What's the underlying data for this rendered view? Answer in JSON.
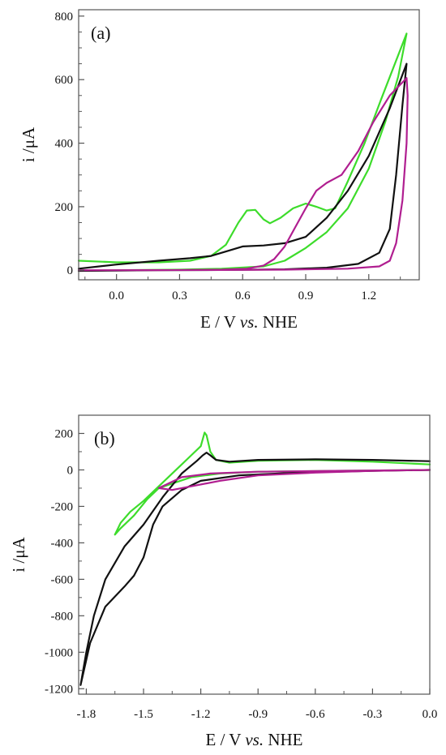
{
  "chart_data": [
    {
      "type": "line",
      "panel_label": "(a)",
      "xlabel": {
        "lead": "E / V ",
        "italic": "vs.",
        "tail": " NHE"
      },
      "ylabel": "i /μA",
      "xlim": [
        -0.18,
        1.44
      ],
      "ylim": [
        -30,
        820
      ],
      "xticks": [
        0.0,
        0.3,
        0.6,
        0.9,
        1.2
      ],
      "xtick_labels": [
        "0.0",
        "0.3",
        "0.6",
        "0.9",
        "1.2"
      ],
      "yticks": [
        0,
        200,
        400,
        600,
        800
      ],
      "ytick_labels": [
        "0",
        "200",
        "400",
        "600",
        "800"
      ],
      "grid": false,
      "legend": "none",
      "series": [
        {
          "color": "#3ddc2b",
          "points": [
            [
              -0.18,
              30
            ],
            [
              0.0,
              25
            ],
            [
              0.2,
              25
            ],
            [
              0.35,
              30
            ],
            [
              0.45,
              45
            ],
            [
              0.52,
              80
            ],
            [
              0.58,
              150
            ],
            [
              0.62,
              188
            ],
            [
              0.66,
              190
            ],
            [
              0.7,
              160
            ],
            [
              0.73,
              148
            ],
            [
              0.78,
              165
            ],
            [
              0.84,
              195
            ],
            [
              0.9,
              210
            ],
            [
              0.95,
              200
            ],
            [
              1.0,
              188
            ],
            [
              1.04,
              195
            ],
            [
              1.1,
              280
            ],
            [
              1.18,
              400
            ],
            [
              1.26,
              540
            ],
            [
              1.33,
              660
            ],
            [
              1.38,
              745
            ],
            [
              1.34,
              610
            ],
            [
              1.28,
              470
            ],
            [
              1.2,
              320
            ],
            [
              1.1,
              195
            ],
            [
              1.0,
              120
            ],
            [
              0.9,
              70
            ],
            [
              0.8,
              30
            ],
            [
              0.7,
              12
            ],
            [
              0.5,
              5
            ],
            [
              0.3,
              2
            ],
            [
              0.0,
              0
            ],
            [
              -0.18,
              -2
            ]
          ]
        },
        {
          "color": "#111111",
          "points": [
            [
              -0.18,
              5
            ],
            [
              0.0,
              18
            ],
            [
              0.2,
              30
            ],
            [
              0.35,
              38
            ],
            [
              0.45,
              45
            ],
            [
              0.55,
              65
            ],
            [
              0.6,
              75
            ],
            [
              0.7,
              78
            ],
            [
              0.8,
              85
            ],
            [
              0.9,
              105
            ],
            [
              1.0,
              165
            ],
            [
              1.1,
              250
            ],
            [
              1.2,
              360
            ],
            [
              1.3,
              510
            ],
            [
              1.38,
              650
            ],
            [
              1.36,
              520
            ],
            [
              1.33,
              300
            ],
            [
              1.3,
              130
            ],
            [
              1.25,
              55
            ],
            [
              1.15,
              20
            ],
            [
              1.0,
              8
            ],
            [
              0.8,
              3
            ],
            [
              0.5,
              1
            ],
            [
              0.2,
              0
            ],
            [
              0.0,
              -1
            ],
            [
              -0.18,
              -2
            ]
          ]
        },
        {
          "color": "#b01e90",
          "points": [
            [
              -0.18,
              0
            ],
            [
              0.2,
              0
            ],
            [
              0.5,
              2
            ],
            [
              0.62,
              5
            ],
            [
              0.7,
              15
            ],
            [
              0.75,
              35
            ],
            [
              0.8,
              75
            ],
            [
              0.85,
              135
            ],
            [
              0.9,
              195
            ],
            [
              0.95,
              250
            ],
            [
              1.0,
              275
            ],
            [
              1.07,
              300
            ],
            [
              1.15,
              375
            ],
            [
              1.22,
              465
            ],
            [
              1.3,
              550
            ],
            [
              1.38,
              605
            ],
            [
              1.385,
              550
            ],
            [
              1.38,
              400
            ],
            [
              1.36,
              220
            ],
            [
              1.33,
              85
            ],
            [
              1.3,
              30
            ],
            [
              1.25,
              12
            ],
            [
              1.1,
              5
            ],
            [
              0.8,
              2
            ],
            [
              0.5,
              1
            ],
            [
              0.0,
              0
            ],
            [
              -0.18,
              0
            ]
          ]
        }
      ]
    },
    {
      "type": "line",
      "panel_label": "(b)",
      "xlabel": {
        "lead": "E / V ",
        "italic": "vs.",
        "tail": " NHE"
      },
      "ylabel": "i /μA",
      "xlim": [
        -1.84,
        0.0
      ],
      "ylim": [
        -1230,
        300
      ],
      "xticks": [
        -1.8,
        -1.5,
        -1.2,
        -0.9,
        -0.6,
        -0.3,
        0.0
      ],
      "xtick_labels": [
        "-1.8",
        "-1.5",
        "-1.2",
        "-0.9",
        "-0.6",
        "-0.3",
        "0.0"
      ],
      "yticks": [
        200,
        0,
        -200,
        -400,
        -600,
        -800,
        -1000,
        -1200
      ],
      "ytick_labels": [
        "200",
        "0",
        "-200",
        "-400",
        "-600",
        "-800",
        "-1000",
        "-1200"
      ],
      "grid": false,
      "legend": "none",
      "series": [
        {
          "color": "#3ddc2b",
          "points": [
            [
              0.0,
              30
            ],
            [
              -0.3,
              45
            ],
            [
              -0.6,
              55
            ],
            [
              -0.9,
              50
            ],
            [
              -1.05,
              40
            ],
            [
              -1.12,
              55
            ],
            [
              -1.15,
              100
            ],
            [
              -1.17,
              190
            ],
            [
              -1.18,
              205
            ],
            [
              -1.2,
              130
            ],
            [
              -1.25,
              80
            ],
            [
              -1.3,
              30
            ],
            [
              -1.4,
              -70
            ],
            [
              -1.5,
              -170
            ],
            [
              -1.57,
              -230
            ],
            [
              -1.62,
              -290
            ],
            [
              -1.65,
              -355
            ],
            [
              -1.62,
              -320
            ],
            [
              -1.55,
              -250
            ],
            [
              -1.48,
              -160
            ],
            [
              -1.42,
              -100
            ],
            [
              -1.35,
              -75
            ],
            [
              -1.25,
              -40
            ],
            [
              -1.1,
              -20
            ],
            [
              -0.9,
              -10
            ],
            [
              -0.5,
              -5
            ],
            [
              0.0,
              0
            ]
          ]
        },
        {
          "color": "#111111",
          "points": [
            [
              0.0,
              48
            ],
            [
              -0.3,
              55
            ],
            [
              -0.6,
              58
            ],
            [
              -0.9,
              55
            ],
            [
              -1.05,
              45
            ],
            [
              -1.12,
              55
            ],
            [
              -1.15,
              80
            ],
            [
              -1.17,
              95
            ],
            [
              -1.19,
              80
            ],
            [
              -1.22,
              50
            ],
            [
              -1.3,
              -20
            ],
            [
              -1.4,
              -150
            ],
            [
              -1.5,
              -300
            ],
            [
              -1.6,
              -420
            ],
            [
              -1.7,
              -600
            ],
            [
              -1.76,
              -800
            ],
            [
              -1.8,
              -1000
            ],
            [
              -1.83,
              -1180
            ],
            [
              -1.78,
              -950
            ],
            [
              -1.7,
              -750
            ],
            [
              -1.6,
              -640
            ],
            [
              -1.55,
              -580
            ],
            [
              -1.5,
              -480
            ],
            [
              -1.45,
              -300
            ],
            [
              -1.4,
              -200
            ],
            [
              -1.3,
              -110
            ],
            [
              -1.2,
              -60
            ],
            [
              -1.0,
              -30
            ],
            [
              -0.7,
              -15
            ],
            [
              -0.3,
              -5
            ],
            [
              0.0,
              0
            ]
          ]
        },
        {
          "color": "#b01e90",
          "points": [
            [
              0.0,
              0
            ],
            [
              -0.3,
              -5
            ],
            [
              -0.6,
              -15
            ],
            [
              -0.9,
              -30
            ],
            [
              -1.1,
              -60
            ],
            [
              -1.25,
              -90
            ],
            [
              -1.35,
              -110
            ],
            [
              -1.42,
              -100
            ],
            [
              -1.38,
              -80
            ],
            [
              -1.3,
              -40
            ],
            [
              -1.15,
              -20
            ],
            [
              -0.9,
              -10
            ],
            [
              -0.5,
              -5
            ],
            [
              0.0,
              0
            ]
          ]
        }
      ]
    }
  ]
}
